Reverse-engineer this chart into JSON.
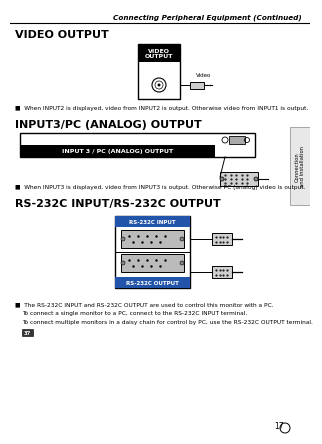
{
  "title": "Connecting Peripheral Equipment (Continued)",
  "section1_title": "VIDEO OUTPUT",
  "section1_note": "■  When INPUT2 is displayed, video from INPUT2 is output. Otherwise video from INPUT1 is output.",
  "section2_title": "INPUT3/PC (ANALOG) OUTPUT",
  "section2_note": "■  When INPUT3 is displayed, video from INPUT3 is output. Otherwise PC (analog) video is output.",
  "section3_title": "RS-232C INPUT/RS-232C OUTPUT",
  "section3_note1": "■  The RS-232C INPUT and RS-232C OUTPUT are used to control this monitor with a PC.",
  "section3_note2": "To connect a single monitor to a PC, connect to the RS-232C INPUT terminal.",
  "section3_note3": "To connect multiple monitors in a daisy chain for control by PC, use the RS-232C OUTPUT terminal.",
  "section3_note4": "37",
  "page_num": "17",
  "sidebar_text": "Connection\nand Installation",
  "bg_color": "#ffffff",
  "video_box_label": "VIDEO\nOUTPUT",
  "analog_label": "INPUT 3 / PC (ANALOG) OUTPUT",
  "rs232_input_label": "RS-232C INPUT",
  "rs232_output_label": "RS-232C OUTPUT"
}
